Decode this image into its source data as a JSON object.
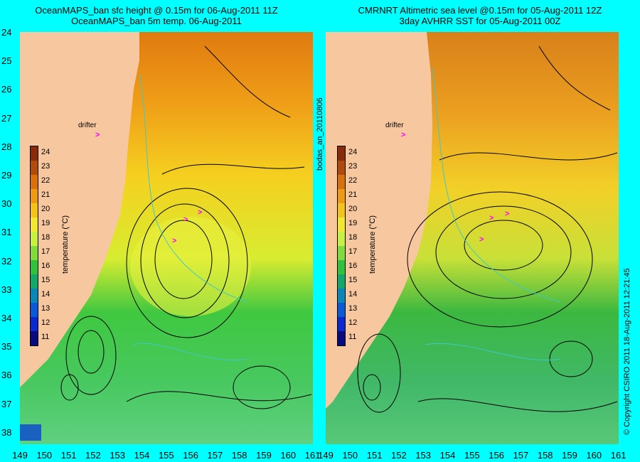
{
  "left_panel": {
    "title_line1": "OceanMAPS_ban sfc height @ 0.15m for 06-Aug-2011 11Z",
    "title_line2": "OceanMAPS_ban 5m temp. 06-Aug-2011"
  },
  "right_panel": {
    "title_line1": "CMRNRT Altimetric sea level  @0.15m  for 05-Aug-2011 12Z",
    "title_line2": "3day AVHRR SST for 05-Aug-2011 00Z"
  },
  "drifter_label": "drifter",
  "drifter_marker": ">",
  "colorbar": {
    "title": "temperature (°C)",
    "ticks": [
      "24",
      "23",
      "22",
      "21",
      "20",
      "19",
      "18",
      "17",
      "16",
      "15",
      "14",
      "13",
      "12",
      "11"
    ],
    "colors": [
      "#8a2a0a",
      "#b24a0c",
      "#d9700c",
      "#f09a14",
      "#f5c21a",
      "#f2e830",
      "#c8f040",
      "#7fdc3a",
      "#2fc23a",
      "#12a86a",
      "#0a86b8",
      "#0a5ad8",
      "#0a2ad0",
      "#0a0a80"
    ]
  },
  "y_ticks": [
    "24",
    "25",
    "26",
    "27",
    "28",
    "29",
    "30",
    "31",
    "32",
    "33",
    "34",
    "35",
    "36",
    "37",
    "38"
  ],
  "x_ticks": [
    "149",
    "150",
    "151",
    "152",
    "153",
    "154",
    "155",
    "156",
    "157",
    "158",
    "159",
    "160",
    "161"
  ],
  "middle_side_label": "bodas_an_20110806",
  "right_side_label": "© Copyright CSIRO 2011   18-Aug-2011 12:21:45"
}
